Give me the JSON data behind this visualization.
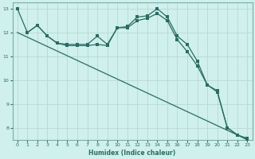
{
  "xlabel": "Humidex (Indice chaleur)",
  "bg_color": "#cff0ec",
  "grid_color": "#b8d8d4",
  "line_color": "#2d6b65",
  "xmin": -0.5,
  "xmax": 23.5,
  "ymin": 7.5,
  "ymax": 13.25,
  "yticks": [
    8,
    9,
    10,
    11,
    12,
    13
  ],
  "xticks": [
    0,
    1,
    2,
    3,
    4,
    5,
    6,
    7,
    8,
    9,
    10,
    11,
    12,
    13,
    14,
    15,
    16,
    17,
    18,
    19,
    20,
    21,
    22,
    23
  ],
  "curve1_x": [
    0,
    1,
    2,
    3,
    4,
    5,
    6,
    7,
    8,
    9,
    10,
    11,
    12,
    13,
    14,
    15,
    16,
    17,
    18,
    19,
    20,
    21,
    22,
    23
  ],
  "curve1_y": [
    13.0,
    12.0,
    12.3,
    11.85,
    11.55,
    11.5,
    11.5,
    11.5,
    11.85,
    11.5,
    12.2,
    12.25,
    12.65,
    12.7,
    13.0,
    12.65,
    11.85,
    11.5,
    10.8,
    9.8,
    9.55,
    8.0,
    7.7,
    7.5
  ],
  "curve2_x": [
    1,
    2,
    3,
    4,
    5,
    6,
    7,
    8,
    9,
    10,
    11,
    12,
    13,
    14,
    15,
    16,
    17,
    18,
    19,
    20,
    21,
    22,
    23
  ],
  "curve2_y": [
    12.0,
    12.3,
    11.85,
    11.55,
    11.45,
    11.45,
    11.45,
    11.5,
    11.45,
    12.2,
    12.2,
    12.5,
    12.6,
    12.8,
    12.5,
    11.7,
    11.2,
    10.6,
    9.8,
    9.5,
    8.0,
    7.7,
    7.55
  ],
  "line3_x": [
    0,
    23
  ],
  "line3_y": [
    12.0,
    7.5
  ]
}
